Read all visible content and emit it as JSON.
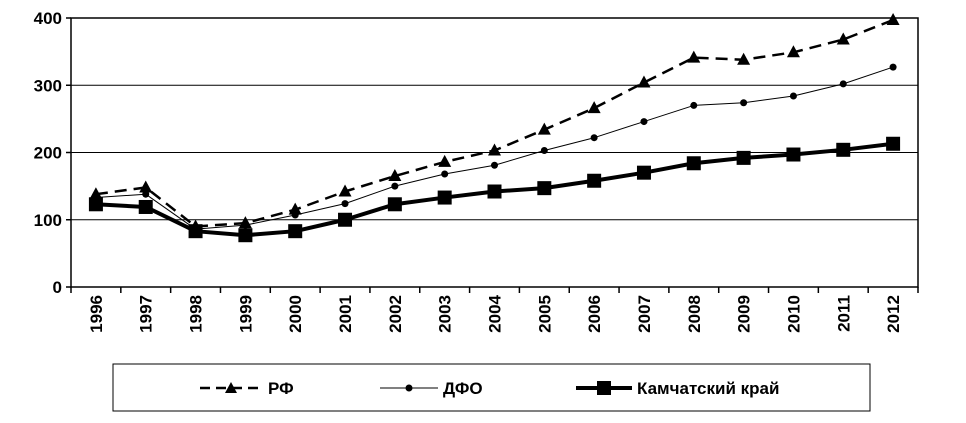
{
  "chart_data": {
    "type": "line",
    "title": "",
    "xlabel": "",
    "ylabel": "",
    "x": [
      "1996",
      "1997",
      "1998",
      "1999",
      "2000",
      "2001",
      "2002",
      "2003",
      "2004",
      "2005",
      "2006",
      "2007",
      "2008",
      "2009",
      "2010",
      "2011",
      "2012"
    ],
    "ylim": [
      0,
      400
    ],
    "yticks": [
      "0",
      "100",
      "200",
      "300",
      "400"
    ],
    "grid": "horizontal",
    "legend_position": "bottom",
    "series": [
      {
        "name": "РФ",
        "style": "dashed-triangle",
        "color": "#000000",
        "values": [
          138,
          148,
          90,
          95,
          115,
          142,
          165,
          186,
          203,
          234,
          266,
          304,
          341,
          338,
          349,
          368,
          397
        ]
      },
      {
        "name": "ДФО",
        "style": "thin-circle",
        "color": "#000000",
        "values": [
          133,
          138,
          86,
          92,
          107,
          124,
          150,
          168,
          181,
          203,
          222,
          246,
          270,
          274,
          284,
          302,
          327
        ]
      },
      {
        "name": "Камчатский край",
        "style": "thick-square",
        "color": "#000000",
        "values": [
          123,
          119,
          83,
          77,
          83,
          100,
          123,
          133,
          142,
          147,
          158,
          170,
          184,
          192,
          197,
          204,
          213
        ]
      }
    ]
  }
}
